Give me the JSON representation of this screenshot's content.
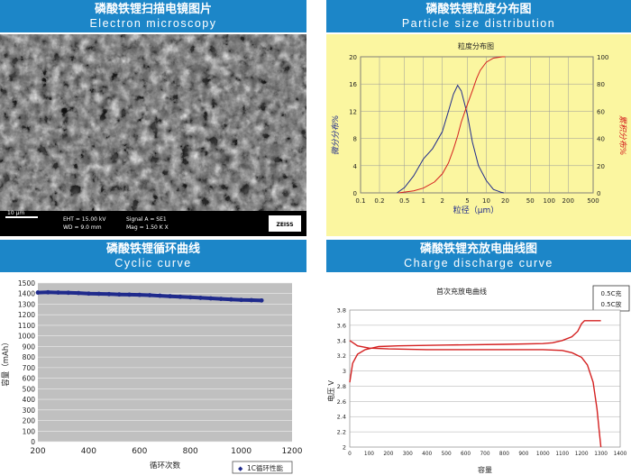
{
  "panels": {
    "sem": {
      "title_zh": "磷酸铁锂扫描电镜图片",
      "title_en": "Electron microscopy"
    },
    "psd": {
      "title_zh": "磷酸铁锂粒度分布图",
      "title_en": "Particle size distribution"
    },
    "cyc": {
      "title_zh": "磷酸铁锂循环曲线",
      "title_en": "Cyclic curve"
    },
    "chg": {
      "title_zh": "磷酸铁锂充放电曲线图",
      "title_en": "Charge discharge curve"
    }
  },
  "sem_info": {
    "scale": "10 µm",
    "eht": "EHT = 15.00 kV",
    "wd": "WD = 9.0 mm",
    "signal": "Signal A = SE1",
    "mag": "Mag =    1.50 K X",
    "logo": "ZEISS"
  },
  "colors": {
    "header": "#1c86c8",
    "psd_bg": "#fbf6a0",
    "red": "#d42020",
    "navy": "#1f2a8c",
    "grey_plot": "#c0c0c0"
  },
  "chart_data": [
    {
      "type": "line",
      "title": "粒度分布图",
      "xlabel": "粒径（μm）",
      "ylabel_left": "微分分布%",
      "ylabel_right": "累积分布%",
      "x_scale": "log",
      "x_ticks": [
        "0.1",
        "0.2",
        "0.5",
        "1",
        "2",
        "5",
        "10",
        "20",
        "50",
        "100",
        "200",
        "500"
      ],
      "x_tick_values": [
        0.1,
        0.2,
        0.5,
        1,
        2,
        5,
        10,
        20,
        50,
        100,
        200,
        500
      ],
      "ylim_left": [
        0,
        20
      ],
      "ylim_right": [
        0,
        100
      ],
      "y_ticks_left": [
        "0",
        "4",
        "8",
        "12",
        "16",
        "20"
      ],
      "y_ticks_right": [
        "0",
        "20",
        "40",
        "60",
        "80",
        "100"
      ],
      "series": [
        {
          "axis": "left",
          "color": "#1f2a8c",
          "x": [
            0.38,
            0.5,
            0.7,
            1.0,
            1.4,
            2.0,
            2.5,
            3.0,
            3.5,
            4.0,
            5.0,
            6.0,
            7.5,
            10,
            13,
            17,
            19
          ],
          "y": [
            0,
            0.8,
            2.5,
            5.0,
            6.5,
            9.0,
            12.0,
            14.5,
            15.8,
            15.0,
            11.5,
            7.5,
            4.0,
            1.8,
            0.5,
            0.1,
            0
          ]
        },
        {
          "axis": "right",
          "color": "#d42020",
          "x": [
            0.4,
            0.7,
            1.0,
            1.5,
            2.0,
            2.5,
            3.0,
            3.5,
            4.0,
            5.0,
            6.0,
            7.0,
            8.0,
            10,
            13,
            18,
            20
          ],
          "y": [
            0,
            1.5,
            3.5,
            8,
            14,
            22,
            32,
            42,
            52,
            65,
            75,
            84,
            90,
            96,
            99,
            100,
            100
          ]
        }
      ]
    },
    {
      "type": "scatter",
      "xlim": [
        200,
        1200
      ],
      "ylim": [
        0,
        1500
      ],
      "x_ticks": [
        "200",
        "400",
        "600",
        "800",
        "1000",
        "1200"
      ],
      "y_ticks": [
        "0",
        "100",
        "200",
        "300",
        "400",
        "500",
        "600",
        "700",
        "800",
        "900",
        "1000",
        "1100",
        "1200",
        "1300",
        "1400",
        "1500"
      ],
      "xlabel": "循环次数",
      "ylabel": "容量（mAh）",
      "legend": "1C循环性能",
      "series": [
        {
          "name": "1C循环性能",
          "color": "#1f2a8c",
          "x": [
            200,
            240,
            280,
            320,
            360,
            400,
            440,
            480,
            520,
            560,
            600,
            640,
            680,
            720,
            760,
            800,
            840,
            880,
            920,
            960,
            1000,
            1040,
            1080
          ],
          "y": [
            1410,
            1412,
            1410,
            1408,
            1405,
            1400,
            1398,
            1395,
            1392,
            1390,
            1388,
            1385,
            1380,
            1375,
            1370,
            1365,
            1360,
            1355,
            1350,
            1345,
            1340,
            1338,
            1335
          ]
        }
      ]
    },
    {
      "type": "line",
      "title": "首次充放电曲线",
      "xlabel": "容量",
      "ylabel": "电压 V",
      "xlim": [
        0,
        1400
      ],
      "ylim": [
        2,
        3.8
      ],
      "x_ticks": [
        "0",
        "100",
        "200",
        "300",
        "400",
        "500",
        "600",
        "700",
        "800",
        "900",
        "1000",
        "1100",
        "1200",
        "1300",
        "1400"
      ],
      "y_ticks": [
        "2",
        "2.2",
        "2.4",
        "2.6",
        "2.8",
        "3",
        "3.2",
        "3.4",
        "3.6",
        "3.8"
      ],
      "legend": [
        "0.5C充",
        "0.5C放"
      ],
      "series": [
        {
          "name": "0.5C充",
          "color": "#d42020",
          "x": [
            0,
            15,
            40,
            80,
            150,
            250,
            500,
            800,
            1000,
            1050,
            1100,
            1150,
            1180,
            1200,
            1215,
            1300
          ],
          "y": [
            2.85,
            3.1,
            3.22,
            3.28,
            3.32,
            3.33,
            3.34,
            3.35,
            3.36,
            3.37,
            3.4,
            3.45,
            3.52,
            3.62,
            3.66,
            3.66
          ]
        },
        {
          "name": "0.5C放",
          "color": "#d42020",
          "x": [
            0,
            40,
            100,
            200,
            400,
            700,
            1000,
            1100,
            1150,
            1200,
            1230,
            1260,
            1280,
            1290,
            1300
          ],
          "y": [
            3.4,
            3.33,
            3.3,
            3.29,
            3.28,
            3.28,
            3.28,
            3.27,
            3.24,
            3.18,
            3.08,
            2.85,
            2.5,
            2.25,
            2.0
          ]
        }
      ]
    }
  ]
}
